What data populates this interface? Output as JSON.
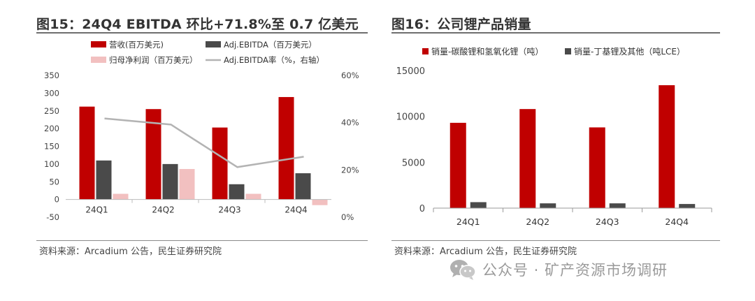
{
  "left": {
    "title": "图15：24Q4 EBITDA 环比+71.8%至 0.7 亿美元",
    "source": "资料来源：Arcadium 公告，民生证券研究院"
  },
  "right": {
    "title": "图16：公司锂产品销量",
    "source": "资料来源：Arcadium 公告，民生证券研究院"
  },
  "watermark": {
    "text": "公众号 · 矿产资源市场调研",
    "icon": "wechat-icon"
  },
  "colors": {
    "red": "#c00000",
    "dark": "#4a4a4a",
    "pink": "#f2c0c0",
    "gray": "#b3b3b3"
  },
  "chart_data": [
    {
      "type": "bar",
      "categories": [
        "24Q1",
        "24Q2",
        "24Q3",
        "24Q4"
      ],
      "series": [
        {
          "name": "营收(百万美元)",
          "values": [
            262,
            255,
            203,
            289
          ],
          "axis": "left",
          "color": "#c00000"
        },
        {
          "name": "Adj.EBITDA（百万美元）",
          "values": [
            110,
            100,
            43,
            74
          ],
          "axis": "left",
          "color": "#4a4a4a"
        },
        {
          "name": "归母净利润（百万美元）",
          "values": [
            16,
            86,
            16,
            -16
          ],
          "axis": "left",
          "color": "#f2c0c0"
        },
        {
          "name": "Adj.EBITDA率（%，右轴）",
          "type": "line",
          "values": [
            41.8,
            39.2,
            21.2,
            25.6
          ],
          "axis": "right",
          "color": "#b3b3b3"
        }
      ],
      "ylim": [
        -50,
        350
      ],
      "yticks": [
        -50,
        0,
        50,
        100,
        150,
        200,
        250,
        300,
        350
      ],
      "y2lim": [
        0,
        60
      ],
      "y2ticks": [
        "0%",
        "20%",
        "40%",
        "60%"
      ],
      "grid": false,
      "legend": "top"
    },
    {
      "type": "bar",
      "categories": [
        "24Q1",
        "24Q2",
        "24Q3",
        "24Q4"
      ],
      "series": [
        {
          "name": "销量-碳酸锂和氢氧化锂（吨）",
          "values": [
            9300,
            10800,
            8800,
            13400
          ],
          "color": "#c00000"
        },
        {
          "name": "销量-丁基锂及其他（吨LCE）",
          "values": [
            650,
            520,
            520,
            450
          ],
          "color": "#4a4a4a"
        }
      ],
      "ylim": [
        0,
        15000
      ],
      "yticks": [
        0,
        5000,
        10000,
        15000
      ],
      "grid": false,
      "legend": "top"
    }
  ]
}
